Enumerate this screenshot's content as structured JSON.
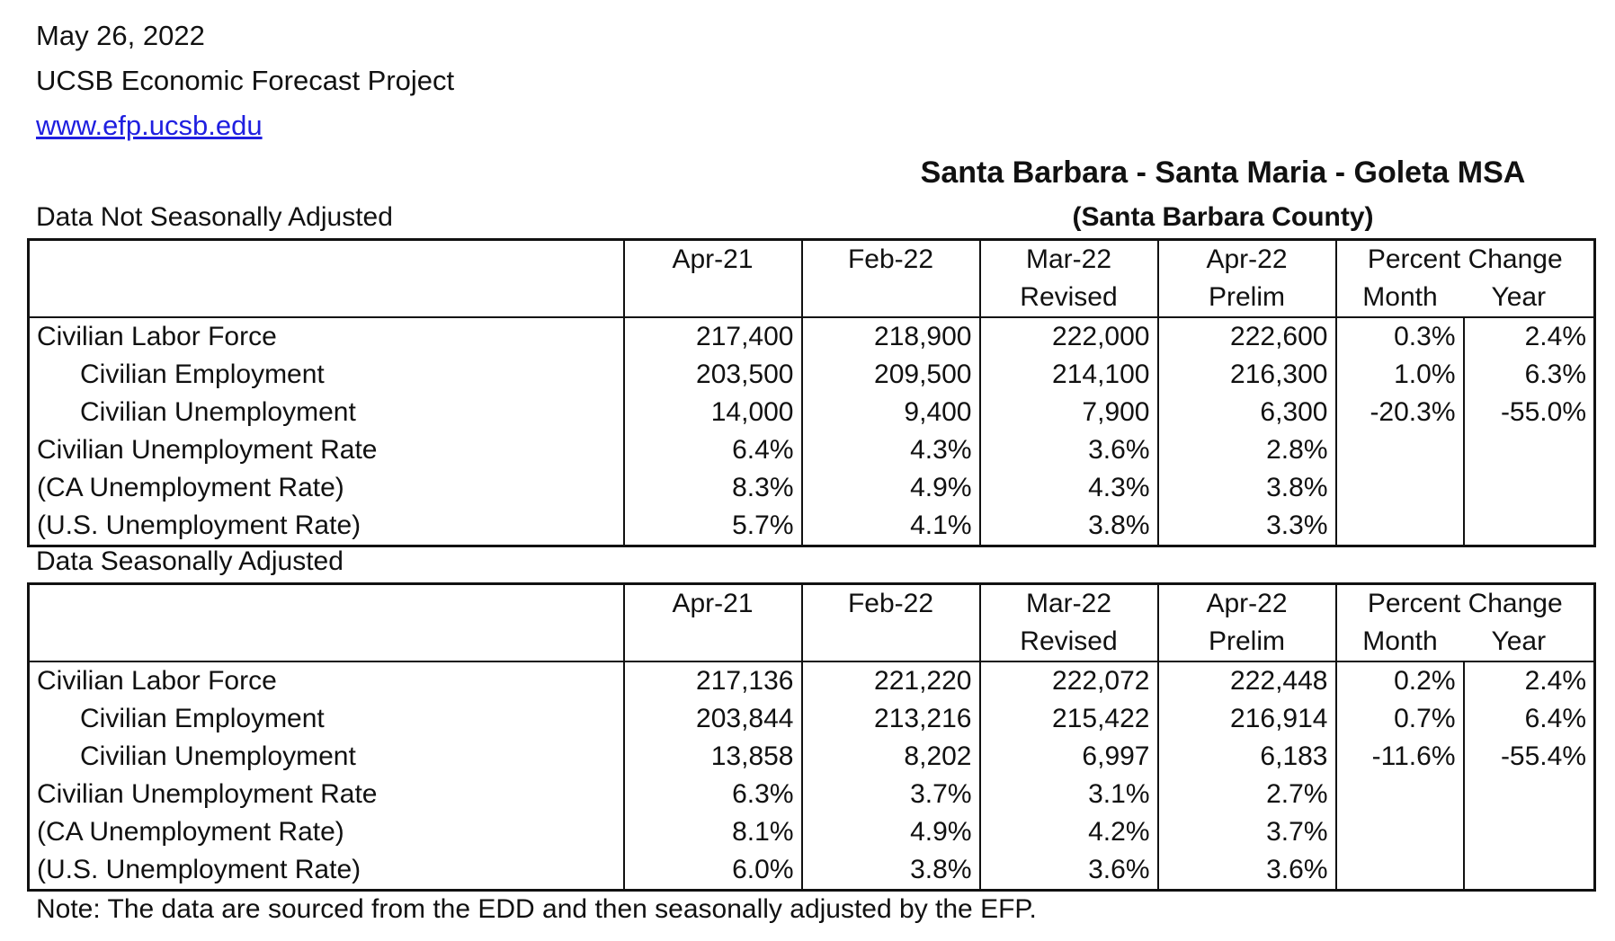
{
  "header": {
    "date": "May 26, 2022",
    "organization": "UCSB Economic Forecast Project",
    "website": "www.efp.ucsb.edu"
  },
  "region": {
    "title": "Santa Barbara - Santa Maria - Goleta MSA",
    "subtitle": "(Santa Barbara County)"
  },
  "columns": {
    "c1": "Apr-21",
    "c2": "Feb-22",
    "c3": "Mar-22",
    "c3_sub": "Revised",
    "c4": "Apr-22",
    "c4_sub": "Prelim",
    "pct": "Percent Change",
    "month": "Month",
    "year": "Year"
  },
  "nsa": {
    "label": "Data Not Seasonally Adjusted",
    "rows": [
      {
        "label": "Civilian Labor Force",
        "v1": "217,400",
        "v2": "218,900",
        "v3": "222,000",
        "v4": "222,600",
        "month": "0.3%",
        "year": "2.4%"
      },
      {
        "label": "Civilian Employment",
        "v1": "203,500",
        "v2": "209,500",
        "v3": "214,100",
        "v4": "216,300",
        "month": "1.0%",
        "year": "6.3%"
      },
      {
        "label": "Civilian Unemployment",
        "v1": "14,000",
        "v2": "9,400",
        "v3": "7,900",
        "v4": "6,300",
        "month": "-20.3%",
        "year": "-55.0%"
      },
      {
        "label": "Civilian Unemployment Rate",
        "v1": "6.4%",
        "v2": "4.3%",
        "v3": "3.6%",
        "v4": "2.8%",
        "month": "",
        "year": ""
      },
      {
        "label": "(CA Unemployment Rate)",
        "v1": "8.3%",
        "v2": "4.9%",
        "v3": "4.3%",
        "v4": "3.8%",
        "month": "",
        "year": ""
      },
      {
        "label": "(U.S. Unemployment Rate)",
        "v1": "5.7%",
        "v2": "4.1%",
        "v3": "3.8%",
        "v4": "3.3%",
        "month": "",
        "year": ""
      }
    ]
  },
  "sa": {
    "label": "Data Seasonally Adjusted",
    "rows": [
      {
        "label": "Civilian Labor Force",
        "v1": "217,136",
        "v2": "221,220",
        "v3": "222,072",
        "v4": "222,448",
        "month": "0.2%",
        "year": "2.4%"
      },
      {
        "label": "Civilian Employment",
        "v1": "203,844",
        "v2": "213,216",
        "v3": "215,422",
        "v4": "216,914",
        "month": "0.7%",
        "year": "6.4%"
      },
      {
        "label": "Civilian Unemployment",
        "v1": "13,858",
        "v2": "8,202",
        "v3": "6,997",
        "v4": "6,183",
        "month": "-11.6%",
        "year": "-55.4%"
      },
      {
        "label": "Civilian Unemployment Rate",
        "v1": "6.3%",
        "v2": "3.7%",
        "v3": "3.1%",
        "v4": "2.7%",
        "month": "",
        "year": ""
      },
      {
        "label": "(CA Unemployment Rate)",
        "v1": "8.1%",
        "v2": "4.9%",
        "v3": "4.2%",
        "v4": "3.7%",
        "month": "",
        "year": ""
      },
      {
        "label": "(U.S. Unemployment Rate)",
        "v1": "6.0%",
        "v2": "3.8%",
        "v3": "3.6%",
        "v4": "3.6%",
        "month": "",
        "year": ""
      }
    ]
  },
  "note": "Note: The data are sourced from the EDD and then seasonally adjusted by the EFP.",
  "colors": {
    "link": "#1f1fe0",
    "text": "#111111"
  }
}
